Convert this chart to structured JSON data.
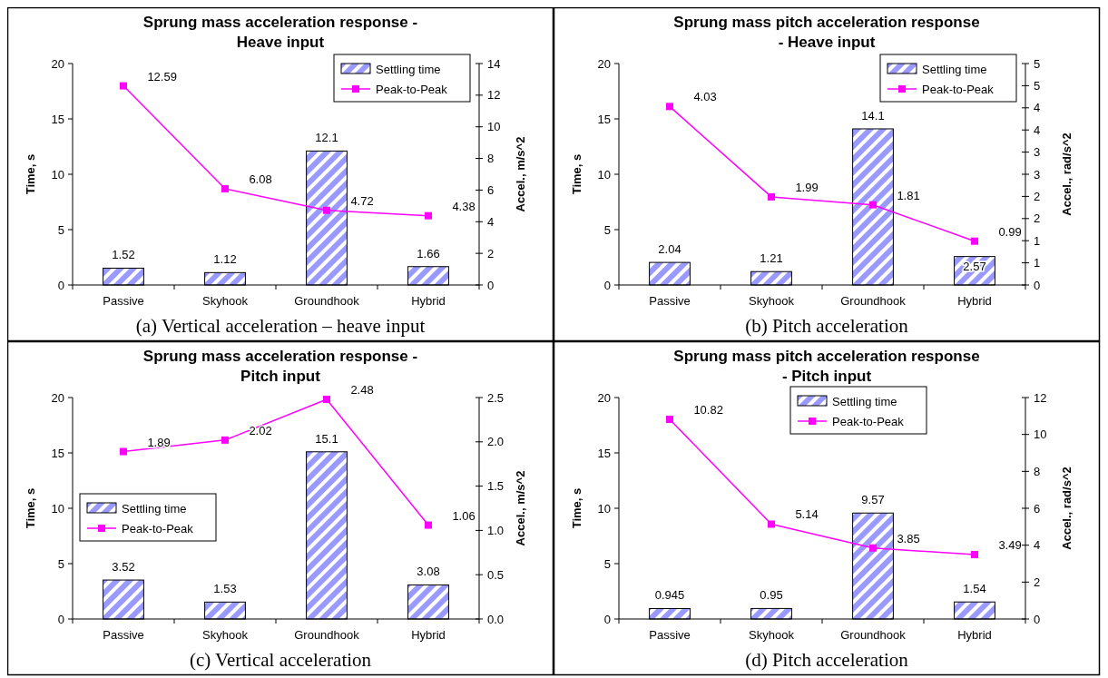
{
  "chart_data": [
    {
      "type": "bar",
      "title": "Sprung mass acceleration response - Heave input",
      "ylabel": "Time, s",
      "y2label": "Accel., m/s^2",
      "categories": [
        "Passive",
        "Skyhook",
        "Groundhook",
        "Hybrid"
      ],
      "series": [
        {
          "name": "Settling time",
          "color": "#9999ff",
          "values": [
            1.52,
            1.12,
            12.1,
            1.66
          ]
        },
        {
          "name": "Peak-to-Peak",
          "type": "line",
          "axis": "y2",
          "color": "#ff00ff",
          "values": [
            12.59,
            6.08,
            4.72,
            4.38
          ]
        }
      ],
      "ylim": [
        0,
        20
      ],
      "yticks": [
        0,
        5,
        10,
        15,
        20
      ],
      "y2lim": [
        0,
        14
      ],
      "y2ticks": [
        0,
        2,
        4,
        6,
        8,
        10,
        12,
        14
      ],
      "data_labels": true,
      "legend": "top right",
      "marker": "square",
      "annotations": [
        "(a) Vertical acceleration – heave input"
      ]
    },
    {
      "type": "bar",
      "title": "Sprung mass pitch acceleration response - Heave input",
      "ylabel": "Time, s",
      "y2label": "Accel., rad/s^2",
      "categories": [
        "Passive",
        "Skyhook",
        "Groundhook",
        "Hybrid"
      ],
      "series": [
        {
          "name": "Settling time",
          "color": "#9999ff",
          "values": [
            2.04,
            1.21,
            14.1,
            2.57
          ]
        },
        {
          "name": "Peak-to-Peak",
          "type": "line",
          "axis": "y2",
          "color": "#ff00ff",
          "values": [
            4.03,
            1.99,
            1.81,
            0.99
          ]
        }
      ],
      "ylim": [
        0,
        20
      ],
      "yticks": [
        0,
        5,
        10,
        15,
        20
      ],
      "y2lim": [
        0,
        5
      ],
      "y2ticks": [
        0,
        {
          "value": 0.5,
          "label": "1"
        },
        1,
        {
          "value": 1.5,
          "label": "2"
        },
        2,
        {
          "value": 2.5,
          "label": "3"
        },
        3,
        {
          "value": 3.5,
          "label": "4"
        },
        4,
        {
          "value": 4.5,
          "label": "5"
        },
        5
      ],
      "data_labels": true,
      "legend": "top right",
      "marker": "square",
      "annotations": [
        "(b) Pitch acceleration"
      ]
    },
    {
      "type": "bar",
      "title": "Sprung mass acceleration response - Pitch input",
      "ylabel": "Time, s",
      "y2label": "Accel., m/s^2",
      "categories": [
        "Passive",
        "Skyhook",
        "Groundhook",
        "Hybrid"
      ],
      "series": [
        {
          "name": "Settling time",
          "color": "#9999ff",
          "values": [
            3.52,
            1.53,
            15.1,
            3.08
          ]
        },
        {
          "name": "Peak-to-Peak",
          "type": "line",
          "axis": "y2",
          "color": "#ff00ff",
          "values": [
            1.89,
            2.02,
            2.48,
            1.06
          ]
        }
      ],
      "ylim": [
        0,
        20
      ],
      "yticks": [
        0,
        5,
        10,
        15,
        20
      ],
      "y2lim": [
        0,
        2.5
      ],
      "y2ticks": [
        {
          "value": 0,
          "label": "0.0"
        },
        {
          "value": 0.5,
          "label": "0.5"
        },
        {
          "value": 1,
          "label": "1.0"
        },
        {
          "value": 1.5,
          "label": "1.5"
        },
        {
          "value": 2,
          "label": "2.0"
        },
        {
          "value": 2.5,
          "label": "2.5"
        }
      ],
      "data_labels": true,
      "legend": "left",
      "marker": "square",
      "annotations": [
        "(c) Vertical acceleration"
      ]
    },
    {
      "type": "bar",
      "title": "Sprung mass pitch acceleration response - Pitch input",
      "ylabel": "Time, s",
      "y2label": "Accel., rad/s^2",
      "categories": [
        "Passive",
        "Skyhook",
        "Groundhook",
        "Hybrid"
      ],
      "series": [
        {
          "name": "Settling time",
          "color": "#9999ff",
          "values": [
            0.945,
            0.95,
            9.57,
            1.54
          ]
        },
        {
          "name": "Peak-to-Peak",
          "type": "line",
          "axis": "y2",
          "color": "#ff00ff",
          "values": [
            10.82,
            5.14,
            3.85,
            3.49
          ]
        }
      ],
      "ylim": [
        0,
        20
      ],
      "yticks": [
        0,
        5,
        10,
        15,
        20
      ],
      "y2lim": [
        0,
        12
      ],
      "y2ticks": [
        0,
        2,
        4,
        6,
        8,
        10,
        12
      ],
      "data_labels": true,
      "legend": "top",
      "marker": "square",
      "annotations": [
        "(d) Pitch acceleration"
      ]
    }
  ]
}
